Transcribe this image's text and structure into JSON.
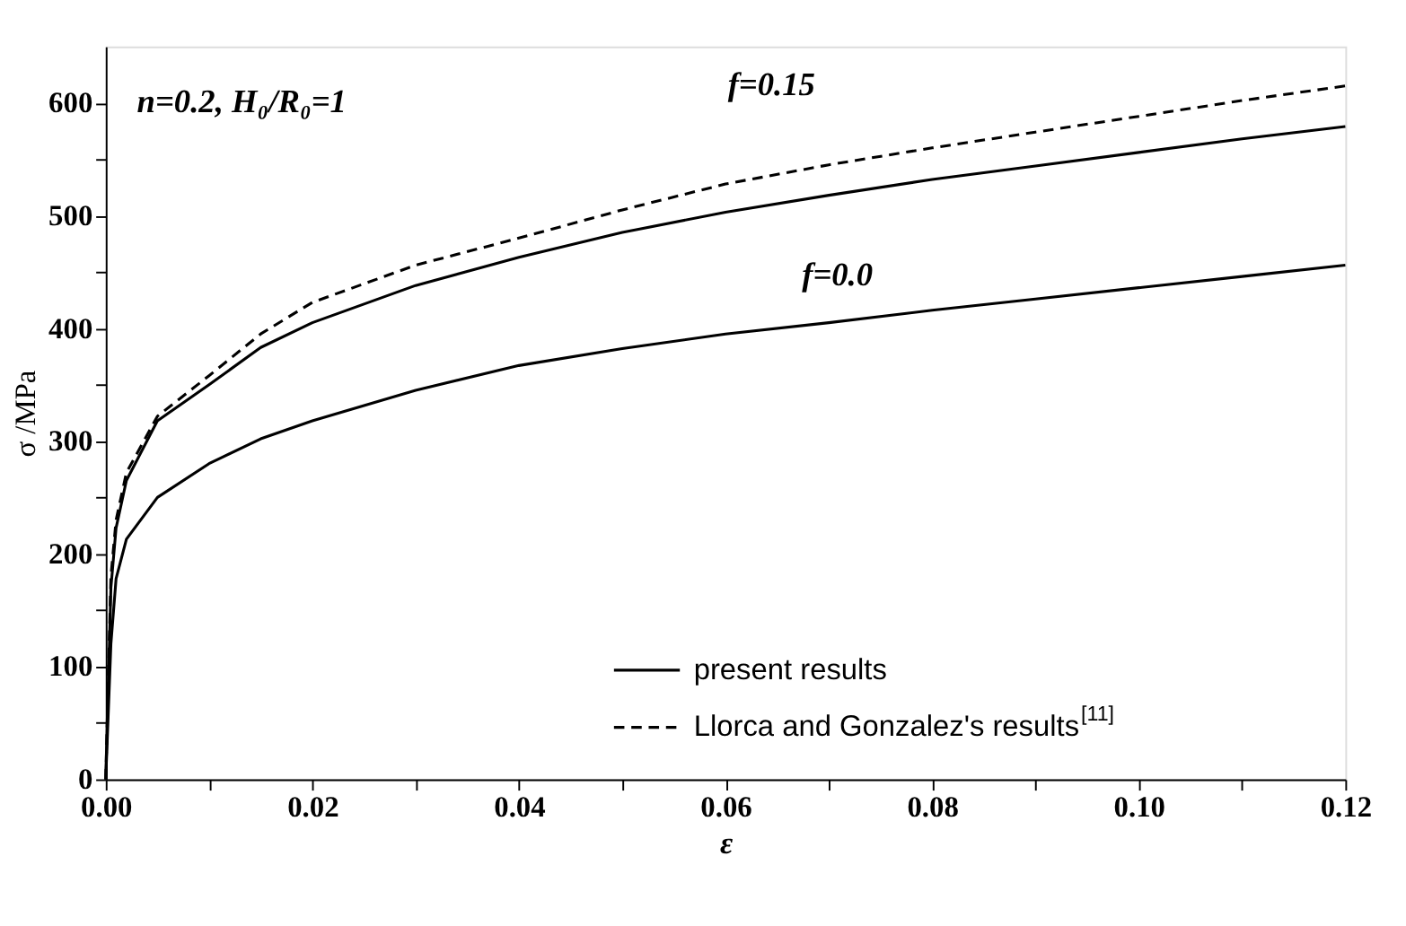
{
  "chart_data": {
    "type": "line",
    "xlabel": "ε",
    "ylabel": "σ /MPa",
    "xlim": [
      0,
      0.12
    ],
    "ylim": [
      0,
      650
    ],
    "xticks": [
      {
        "value": 0,
        "label": "0.00"
      },
      {
        "value": 0.01,
        "label": null
      },
      {
        "value": 0.02,
        "label": "0.02"
      },
      {
        "value": 0.03,
        "label": null
      },
      {
        "value": 0.04,
        "label": "0.04"
      },
      {
        "value": 0.05,
        "label": null
      },
      {
        "value": 0.06,
        "label": "0.06"
      },
      {
        "value": 0.07,
        "label": null
      },
      {
        "value": 0.08,
        "label": "0.08"
      },
      {
        "value": 0.09,
        "label": null
      },
      {
        "value": 0.1,
        "label": "0.10"
      },
      {
        "value": 0.11,
        "label": null
      },
      {
        "value": 0.12,
        "label": "0.12"
      }
    ],
    "yticks": [
      0,
      {
        "value": 50,
        "label": null
      },
      100,
      {
        "value": 150,
        "label": null
      },
      200,
      {
        "value": 250,
        "label": null
      },
      300,
      {
        "value": 350,
        "label": null
      },
      400,
      {
        "value": 450,
        "label": null
      },
      500,
      {
        "value": 550,
        "label": null
      },
      600
    ],
    "grid": false,
    "legend": "bottom right",
    "marker": "none",
    "annotations": [
      "n=0.2, H₀/R₀=1",
      "f=0.15",
      "f=0.0"
    ],
    "series": [
      {
        "name": "present results",
        "color": "#000000",
        "line_style": "solid",
        "x": [
          0,
          0.0005,
          0.001,
          0.002,
          0.005,
          0.01,
          0.015,
          0.02,
          0.03,
          0.04,
          0.05,
          0.06,
          0.07,
          0.08,
          0.09,
          0.1,
          0.11,
          0.12
        ],
        "values": [
          0,
          170,
          223,
          265,
          318,
          350,
          383,
          405,
          438,
          463,
          485,
          503,
          518,
          532,
          544,
          556,
          568,
          579
        ]
      },
      {
        "name": "Llorca and Gonzalez's results$^{[11]}$",
        "color": "#000000",
        "line_style": "dashed",
        "x": [
          0,
          0.0005,
          0.001,
          0.002,
          0.005,
          0.01,
          0.015,
          0.02,
          0.03,
          0.04,
          0.05,
          0.06,
          0.07,
          0.08,
          0.09,
          0.1,
          0.11,
          0.12
        ],
        "values": [
          0,
          180,
          230,
          272,
          322,
          358,
          395,
          423,
          456,
          480,
          505,
          528,
          545,
          560,
          574,
          588,
          602,
          615
        ]
      },
      {
        "color": "#000000",
        "line_style": "solid",
        "x": [
          0,
          0.0005,
          0.001,
          0.002,
          0.005,
          0.01,
          0.015,
          0.02,
          0.03,
          0.04,
          0.05,
          0.06,
          0.07,
          0.08,
          0.09,
          0.1,
          0.11,
          0.12
        ],
        "values": [
          0,
          120,
          178,
          213,
          250,
          280,
          302,
          318,
          345,
          367,
          382,
          395,
          405,
          416,
          426,
          436,
          446,
          456
        ]
      }
    ]
  }
}
